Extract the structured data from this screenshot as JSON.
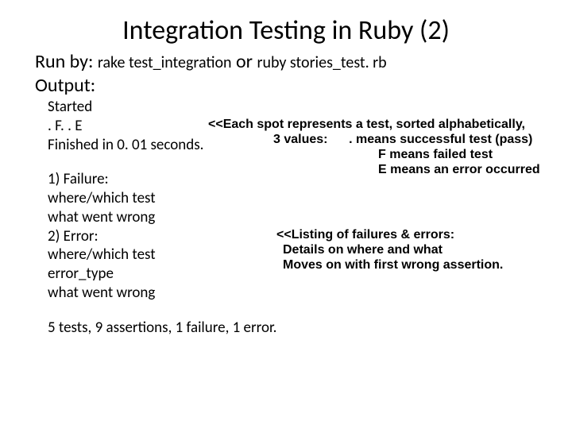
{
  "title": "Integration Testing in Ruby (2)",
  "runby_label": "Run by:",
  "cmd1": "rake test_integration",
  "or_label": "or",
  "cmd2": "ruby stories_test. rb",
  "output_label": "Output:",
  "out": {
    "started": "Started",
    "dots": ". F. . E",
    "finished": "Finished in 0. 01 seconds.",
    "failure_hdr": "1) Failure:",
    "failure_l1": "where/which test",
    "failure_l2": "what went wrong",
    "error_hdr": "2) Error:",
    "error_l1": "where/which test",
    "error_l2": "error_type",
    "error_l3": "what went wrong",
    "summary": "5 tests, 9 assertions, 1 failure, 1 error."
  },
  "annot": {
    "a1_l1": "<<Each spot represents a test, sorted alphabetically,",
    "a1_l2a": "3 values:",
    "a1_l2b": ". means successful test (pass)",
    "a1_l3": "F means failed test",
    "a1_l4": "E means an error occurred",
    "a2_l1": "<<Listing of failures & errors:",
    "a2_l2": "Details on where and what",
    "a2_l3": "Moves on with first wrong assertion."
  },
  "colors": {
    "text": "#000000",
    "background": "#ffffff"
  },
  "fontsize": {
    "title": 34,
    "body": 24,
    "cmd": 20,
    "output": 19,
    "annot": 16
  }
}
